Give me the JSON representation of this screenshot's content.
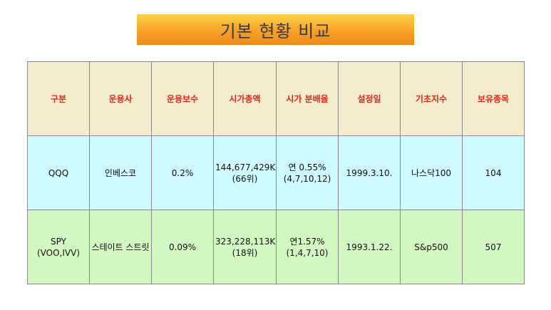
{
  "title": "기본 현황 비교",
  "headers": [
    "구분",
    "운용사",
    "운용보수",
    "시가총액",
    "시가 분배율",
    "설정일",
    "기초지수",
    "보유종목"
  ],
  "rows": [
    {
      "ticker": [
        "QQQ"
      ],
      "manager": "인베스코",
      "fee": "0.2%",
      "market_cap": [
        "144,677,429K",
        "(66위)"
      ],
      "distribution": [
        "연 0.55%",
        "(4,7,10,12)"
      ],
      "inception": "1999.3.10.",
      "index": "나스닥100",
      "holdings": "104"
    },
    {
      "ticker": [
        "SPY",
        "(VOO,IVV)"
      ],
      "manager": "스테이트 스트릿",
      "fee": "0.09%",
      "market_cap": [
        "323,228,113K",
        "(18위)"
      ],
      "distribution": [
        "연1.57%",
        "(1,4,7,10)"
      ],
      "inception": "1993.1.22.",
      "index": "S&p500",
      "holdings": "507"
    }
  ],
  "colors": {
    "banner_top": "#fbd24a",
    "banner_bottom": "#f08a1c",
    "header_bg": "#f5ebcd",
    "header_text": "#e8261c",
    "row1_bg": "#cefbff",
    "row2_bg": "#d3f7c0"
  }
}
